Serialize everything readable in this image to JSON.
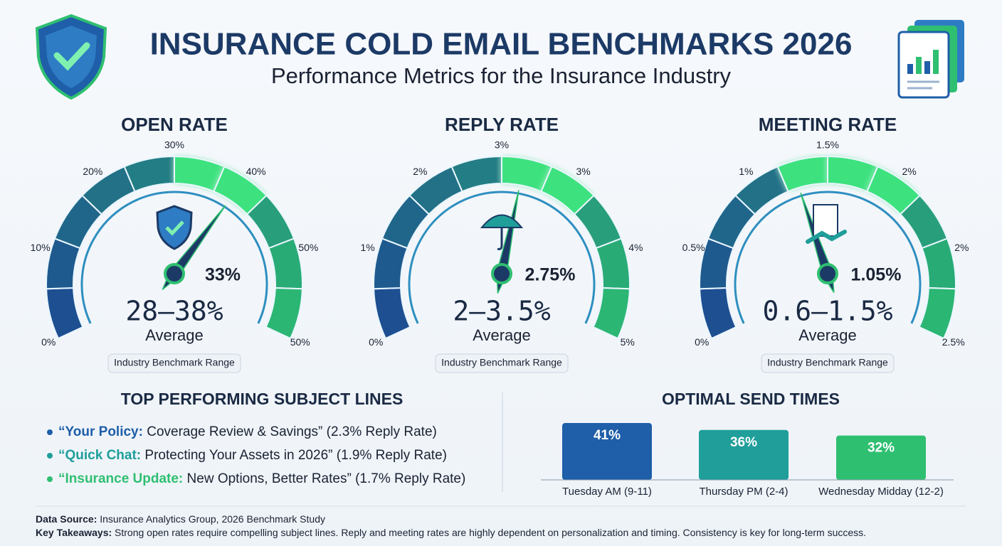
{
  "header": {
    "title": "INSURANCE COLD EMAIL BENCHMARKS 2026",
    "subtitle": "Performance Metrics for the Insurance Industry"
  },
  "chart_data": [
    {
      "type": "gauge",
      "title": "OPEN RATE",
      "scale_labels": [
        "0%",
        "10%",
        "20%",
        "30%",
        "40%",
        "50%",
        "50%"
      ],
      "ylim": [
        0,
        50
      ],
      "value": 33,
      "value_label": "33%",
      "range_label": "28–38%",
      "caption": "Average",
      "badge": "Industry Benchmark Range"
    },
    {
      "type": "gauge",
      "title": "REPLY RATE",
      "scale_labels": [
        "0%",
        "1%",
        "2%",
        "3%",
        "3%",
        "4%",
        "5%"
      ],
      "ylim": [
        0,
        5
      ],
      "value": 2.75,
      "value_label": "2.75%",
      "range_label": "2–3.5%",
      "caption": "Average",
      "badge": "Industry Benchmark Range"
    },
    {
      "type": "gauge",
      "title": "MEETING RATE",
      "scale_labels": [
        "0%",
        "0.5%",
        "1%",
        "1.5%",
        "2%",
        "2%",
        "2.5%"
      ],
      "ylim": [
        0,
        2.5
      ],
      "value": 1.05,
      "value_label": "1.05%",
      "range_label": "0.6–1.5%",
      "caption": "Average",
      "badge": "Industry Benchmark Range"
    },
    {
      "type": "bar",
      "title": "OPTIMAL SEND TIMES",
      "categories": [
        "Tuesday AM (9-11)",
        "Thursday PM (2-4)",
        "Wednesday Midday (12-2)"
      ],
      "values": [
        41,
        36,
        32
      ],
      "value_labels": [
        "41%",
        "36%",
        "32%"
      ],
      "colors": [
        "#1f5ea8",
        "#1f9e9a",
        "#2fbf71"
      ]
    }
  ],
  "subject_lines": {
    "title": "TOP PERFORMING SUBJECT LINES",
    "items": [
      {
        "lead": "“Your Policy:",
        "text": " Coverage Review & Savings” (2.3% Reply Rate)"
      },
      {
        "lead": "“Quick Chat:",
        "text": " Protecting Your Assets in 2026” (1.9% Reply Rate)"
      },
      {
        "lead": "“Insurance Update:",
        "text": " New Options, Better Rates” (1.7% Reply Rate)"
      }
    ]
  },
  "footer": [
    {
      "label": "Data Source:",
      "text": " Insurance Analytics Group, 2026 Benchmark Study"
    },
    {
      "label": "Key Takeaways:",
      "text": " Strong open rates require compelling subject lines. Reply and meeting rates are highly dependent on personalization and timing. Consistency is key for long-term success."
    }
  ]
}
